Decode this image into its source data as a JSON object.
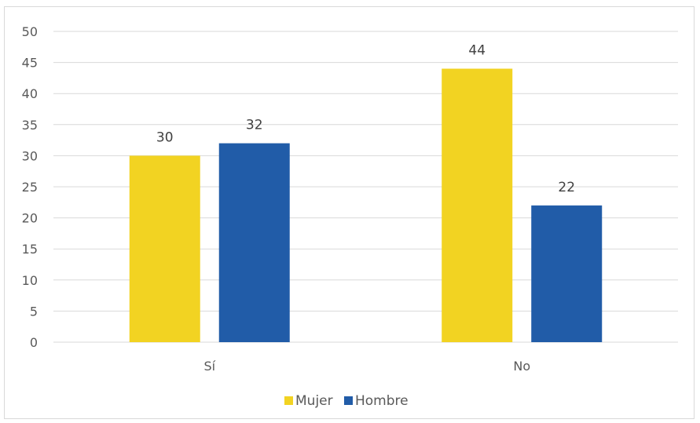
{
  "chart_data": {
    "type": "bar",
    "categories": [
      "Sí",
      "No"
    ],
    "series": [
      {
        "name": "Mujer",
        "values": [
          30,
          44
        ],
        "color": "#f2d322"
      },
      {
        "name": "Hombre",
        "values": [
          32,
          22
        ],
        "color": "#215ca8"
      }
    ],
    "ylim": [
      0,
      50
    ],
    "yticks": [
      0,
      5,
      10,
      15,
      20,
      25,
      30,
      35,
      40,
      45,
      50
    ],
    "grid": true,
    "legend_position": "bottom",
    "data_labels": true,
    "gridline_color": "#d9d9d9"
  }
}
